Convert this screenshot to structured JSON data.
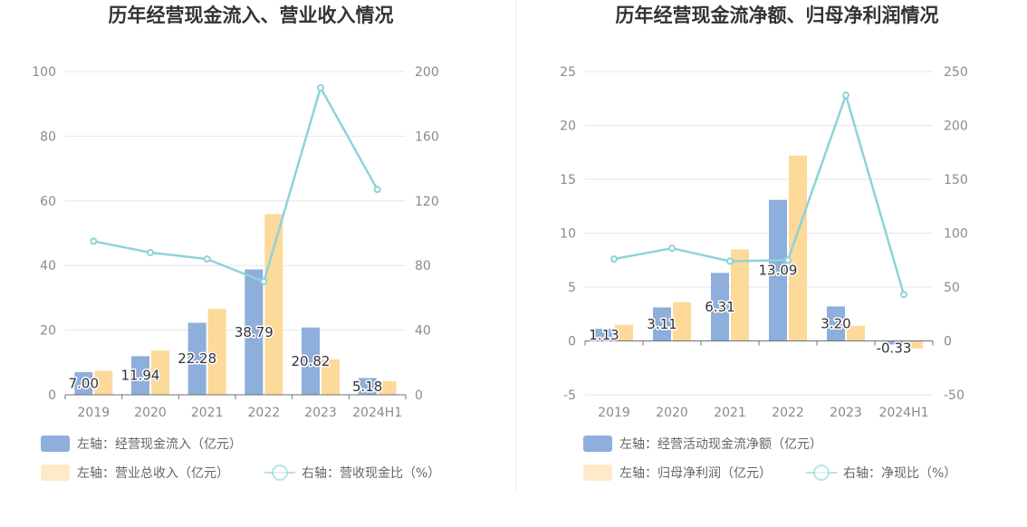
{
  "chart_data": [
    {
      "type": "bar+line",
      "title": "历年经营现金流入、营业收入情况",
      "categories": [
        "2019",
        "2020",
        "2021",
        "2022",
        "2023",
        "2024H1"
      ],
      "left_axis": {
        "ylim": [
          0,
          100
        ],
        "ticks": [
          "0",
          "20",
          "40",
          "60",
          "80",
          "100"
        ]
      },
      "right_axis": {
        "ylim": [
          0,
          200
        ],
        "ticks": [
          "0",
          "40",
          "80",
          "120",
          "160",
          "200"
        ]
      },
      "series": [
        {
          "name": "左轴：经营现金流入（亿元）",
          "type": "bar",
          "axis": "left",
          "color": "#8eaedb",
          "values": [
            7.0,
            11.94,
            22.28,
            38.79,
            20.82,
            5.18
          ],
          "labels": [
            "7.00",
            "11.94",
            "22.28",
            "38.79",
            "20.82",
            "5.18"
          ]
        },
        {
          "name": "左轴：营业总收入（亿元）",
          "type": "bar",
          "axis": "left",
          "color": "#fdd99a",
          "values": [
            7.4,
            13.7,
            26.6,
            55.9,
            11.0,
            4.2
          ]
        },
        {
          "name": "右轴：营收现金比（%）",
          "type": "line",
          "axis": "right",
          "color": "#8dd3d9",
          "values": [
            95,
            88,
            84,
            70,
            190,
            127
          ]
        }
      ]
    },
    {
      "type": "bar+line",
      "title": "历年经营现金流净额、归母净利润情况",
      "categories": [
        "2019",
        "2020",
        "2021",
        "2022",
        "2023",
        "2024H1"
      ],
      "left_axis": {
        "ylim": [
          -5,
          25
        ],
        "ticks": [
          "-5",
          "0",
          "5",
          "10",
          "15",
          "20",
          "25"
        ]
      },
      "right_axis": {
        "ylim": [
          -50,
          250
        ],
        "ticks": [
          "-50",
          "0",
          "50",
          "100",
          "150",
          "200",
          "250"
        ]
      },
      "series": [
        {
          "name": "左轴：经营活动现金流净额（亿元）",
          "type": "bar",
          "axis": "left",
          "color": "#8eaedb",
          "values": [
            1.13,
            3.11,
            6.31,
            13.09,
            3.2,
            -0.33
          ],
          "labels": [
            "1.13",
            "3.11",
            "6.31",
            "13.09",
            "3.20",
            "-0.33"
          ]
        },
        {
          "name": "左轴：归母净利润（亿元）",
          "type": "bar",
          "axis": "left",
          "color": "#fdd99a",
          "values": [
            1.5,
            3.6,
            8.5,
            17.2,
            1.4,
            -0.7
          ]
        },
        {
          "name": "右轴：净现比（%）",
          "type": "line",
          "axis": "right",
          "color": "#8dd3d9",
          "values": [
            76,
            86,
            74,
            75,
            228,
            43
          ]
        }
      ]
    }
  ]
}
